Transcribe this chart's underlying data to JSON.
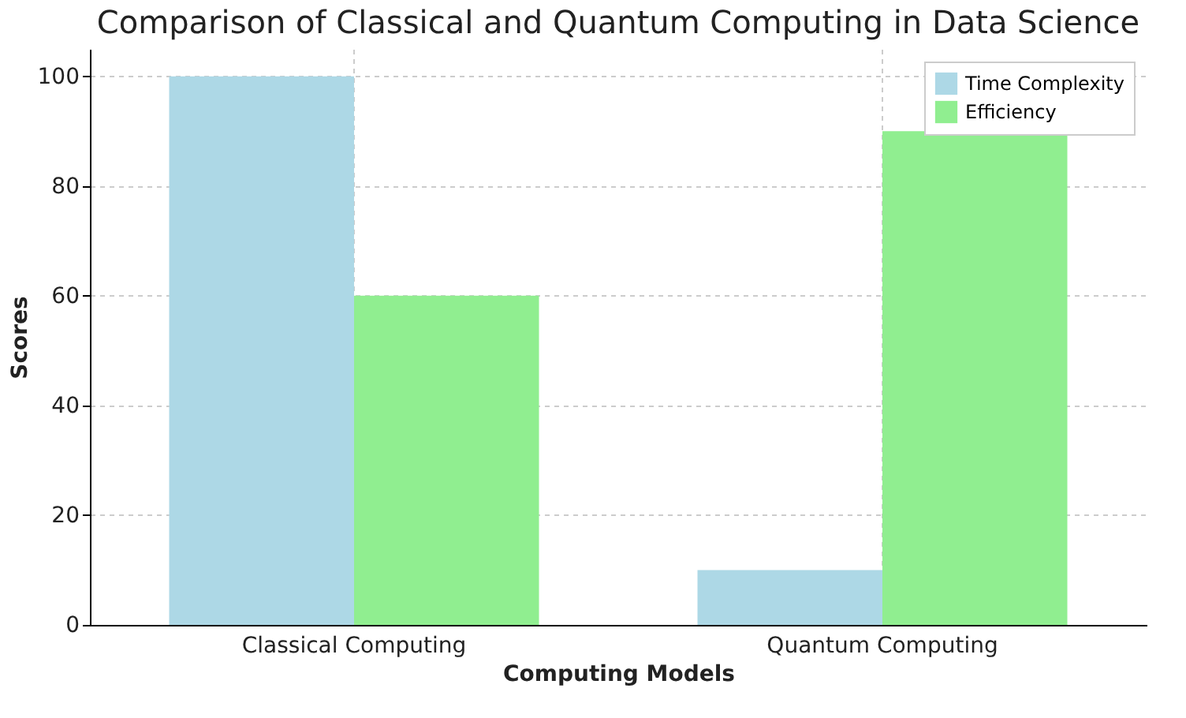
{
  "chart_data": {
    "type": "bar",
    "title": "Comparison of Classical and Quantum Computing in Data Science",
    "xlabel": "Computing Models",
    "ylabel": "Scores",
    "categories": [
      "Classical Computing",
      "Quantum Computing"
    ],
    "series": [
      {
        "name": "Time Complexity",
        "color": "#add8e6",
        "values": [
          100,
          10
        ]
      },
      {
        "name": "Efficiency",
        "color": "#90ee90",
        "values": [
          60,
          90
        ]
      }
    ],
    "ylim": [
      0,
      105
    ],
    "yticks": [
      0,
      20,
      40,
      60,
      80,
      100
    ],
    "grid": true,
    "legend": "top right"
  }
}
